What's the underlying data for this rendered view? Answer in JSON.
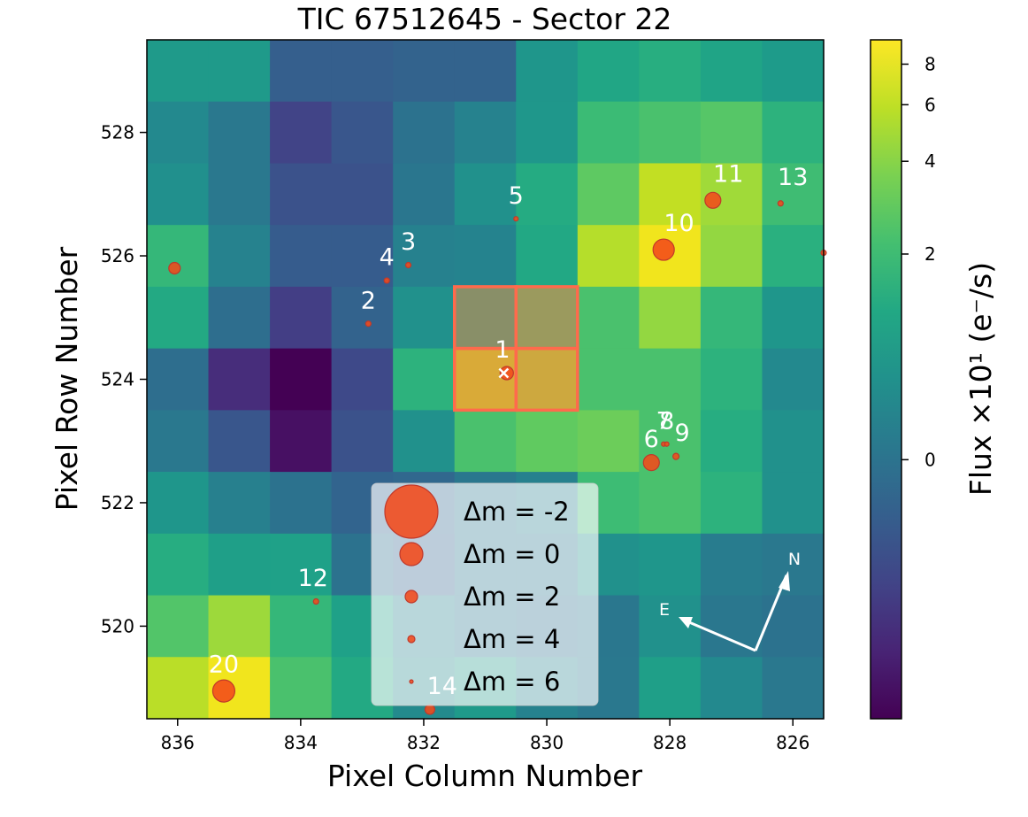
{
  "chart_data": {
    "type": "heatmap",
    "title": "TIC 67512645 - Sector 22",
    "xlabel": "Pixel Column Number",
    "ylabel": "Pixel Row Number",
    "x_range": [
      836.5,
      825.5
    ],
    "y_range": [
      518.5,
      529.5
    ],
    "x_ticks": [
      836,
      834,
      832,
      830,
      828,
      826
    ],
    "y_ticks": [
      520,
      522,
      524,
      526,
      528
    ],
    "x_tick_labels": [
      "836",
      "834",
      "832",
      "830",
      "828",
      "826"
    ],
    "y_tick_labels": [
      "520",
      "522",
      "524",
      "526",
      "528"
    ],
    "columns": [
      836,
      835,
      834,
      833,
      832,
      831,
      830,
      829,
      828,
      827,
      826
    ],
    "rows_top_to_bottom": [
      529,
      528,
      527,
      526,
      525,
      524,
      523,
      522,
      521,
      520,
      519
    ],
    "grid_colors": [
      [
        "#1f9a8a",
        "#1f9a8a",
        "#355f8d",
        "#355f8d",
        "#33638d",
        "#33638d",
        "#1f968b",
        "#21a685",
        "#28ae80",
        "#20a486",
        "#1e9b8a"
      ],
      [
        "#23898e",
        "#2a788e",
        "#414487",
        "#39568c",
        "#2c728e",
        "#26828e",
        "#1f978b",
        "#3bbb75",
        "#4ac16d",
        "#56c667",
        "#2db27d"
      ],
      [
        "#21908d",
        "#2a788e",
        "#3b528b",
        "#3b528b",
        "#2a768e",
        "#21918c",
        "#25ab82",
        "#5ec962",
        "#c2df23",
        "#a0da39",
        "#3fbc73"
      ],
      [
        "#35b779",
        "#26828e",
        "#365c8d",
        "#365c8d",
        "#26818e",
        "#25838e",
        "#22a884",
        "#b5de2b",
        "#f1e51d",
        "#93d741",
        "#2ab07f"
      ],
      [
        "#23a983",
        "#2e6e8e",
        "#433e85",
        "#33638d",
        "#21918c",
        "#28ae80",
        "#4ac16d",
        "#4ac16d",
        "#93d741",
        "#35b779",
        "#1f968b"
      ],
      [
        "#2e6e8e",
        "#472d7b",
        "#440154",
        "#3e4989",
        "#2db27d",
        "#bade28",
        "#a5db36",
        "#4ac16d",
        "#4ac16d",
        "#2db27d",
        "#23898e"
      ],
      [
        "#2a788e",
        "#39568c",
        "#471063",
        "#3b528b",
        "#21918c",
        "#4ac16d",
        "#60ca60",
        "#6ccd5a",
        "#4ac16d",
        "#27ad81",
        "#21918c"
      ],
      [
        "#1f968b",
        "#27808e",
        "#2c728e",
        "#32648e",
        "#31688e",
        "#2a778e",
        "#26818e",
        "#3dbc74",
        "#4ac16d",
        "#2db27d",
        "#21918c"
      ],
      [
        "#27ad81",
        "#1f9f88",
        "#1fa188",
        "#2c728e",
        "#32648e",
        "#2a788e",
        "#2a788e",
        "#21918c",
        "#1f968b",
        "#287c8e",
        "#2a788e"
      ],
      [
        "#52c569",
        "#9dd93b",
        "#35b779",
        "#1fa188",
        "#26828e",
        "#2a768e",
        "#2c718e",
        "#2a778e",
        "#21918c",
        "#2a778e",
        "#2c728e"
      ],
      [
        "#bade28",
        "#f1e51d",
        "#4ac16d",
        "#23a983",
        "#238a8d",
        "#1f9a8a",
        "#26828e",
        "#2a788e",
        "#1f9f88",
        "#23898e",
        "#2a788e"
      ]
    ],
    "aperture_pixels": [
      [
        831,
        525
      ],
      [
        830,
        525
      ],
      [
        831,
        524
      ],
      [
        830,
        524
      ]
    ],
    "aperture_color": "#ff6a4c",
    "target_marker": {
      "col": 830.7,
      "row": 524.1,
      "symbol": "x"
    },
    "stars": [
      {
        "label": "1",
        "col": 830.65,
        "row": 524.1,
        "size": 12,
        "lx": 830.72,
        "ly": 524.35
      },
      {
        "label": "2",
        "col": 832.9,
        "row": 524.9,
        "size": 3,
        "lx": 832.9,
        "ly": 525.15
      },
      {
        "label": "3",
        "col": 832.25,
        "row": 525.85,
        "size": 3,
        "lx": 832.25,
        "ly": 526.1
      },
      {
        "label": "4",
        "col": 832.6,
        "row": 525.6,
        "size": 3,
        "lx": 832.6,
        "ly": 525.85
      },
      {
        "label": "5",
        "col": 830.5,
        "row": 526.6,
        "size": 2,
        "lx": 830.5,
        "ly": 526.85
      },
      {
        "label": "6",
        "col": 828.3,
        "row": 522.65,
        "size": 15,
        "lx": 828.3,
        "ly": 522.9
      },
      {
        "label": "7",
        "col": 828.1,
        "row": 522.95,
        "size": 2,
        "lx": 828.1,
        "ly": 523.2
      },
      {
        "label": "8",
        "col": 828.05,
        "row": 522.95,
        "size": 2,
        "lx": 828.05,
        "ly": 523.2
      },
      {
        "label": "9",
        "col": 827.9,
        "row": 522.75,
        "size": 4,
        "lx": 827.8,
        "ly": 523.0
      },
      {
        "label": "10",
        "col": 828.1,
        "row": 526.1,
        "size": 21,
        "lx": 827.85,
        "ly": 526.4
      },
      {
        "label": "11",
        "col": 827.3,
        "row": 526.9,
        "size": 15,
        "lx": 827.05,
        "ly": 527.2
      },
      {
        "label": "12",
        "col": 833.75,
        "row": 520.4,
        "size": 3,
        "lx": 833.8,
        "ly": 520.65
      },
      {
        "label": "13",
        "col": 826.2,
        "row": 526.85,
        "size": 3,
        "lx": 826.0,
        "ly": 527.15
      },
      {
        "label": "14",
        "col": 831.9,
        "row": 518.65,
        "size": 8,
        "lx": 831.7,
        "ly": 518.9
      },
      {
        "label": "20",
        "col": 835.25,
        "row": 518.95,
        "size": 22,
        "lx": 835.25,
        "ly": 519.25
      },
      {
        "label": "",
        "col": 836.05,
        "row": 525.8,
        "size": 10
      },
      {
        "label": "",
        "col": 825.5,
        "row": 526.05,
        "size": 3
      }
    ],
    "star_color": "#f24a1a",
    "colorbar": {
      "label": "Flux ×10¹ (e⁻/s)",
      "tick_labels": [
        "8",
        "6",
        "4",
        "2",
        "0"
      ],
      "tick_values": [
        8,
        6,
        4,
        2,
        0
      ],
      "colormap": "viridis",
      "scale": "asinh"
    },
    "legend": {
      "entries": [
        {
          "label": "Δm =  -2",
          "size": 30
        },
        {
          "label": "Δm =  0",
          "size": 13
        },
        {
          "label": "Δm =  2",
          "size": 7
        },
        {
          "label": "Δm =  4",
          "size": 4
        },
        {
          "label": "Δm =  6",
          "size": 2
        }
      ]
    },
    "compass": {
      "north_label": "N",
      "east_label": "E"
    }
  }
}
